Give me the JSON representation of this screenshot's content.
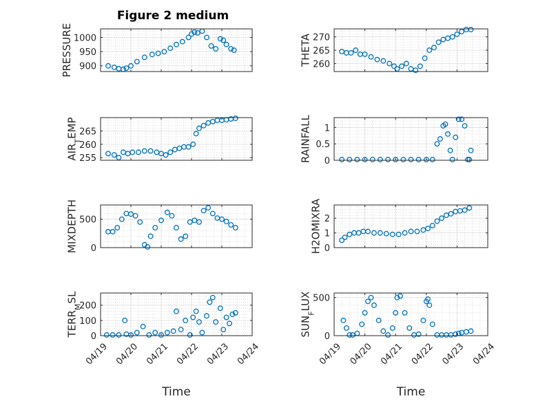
{
  "figure": {
    "title": "Figure 2 medium"
  },
  "chart_data": [
    {
      "type": "scatter",
      "title": "Figure 2 medium",
      "ylabel": "PRESSURE",
      "xlabel": "",
      "ylim": [
        880,
        1030
      ],
      "yticks": [
        900,
        950,
        1000
      ],
      "xlim": [
        "04/19",
        "04/24"
      ],
      "xticks": [
        "04/19",
        "04/20",
        "04/21",
        "04/22",
        "04/23",
        "04/24"
      ],
      "show_x_ticklabels": false,
      "grid": true,
      "marker": "circle",
      "color": "#0072BD",
      "series": [
        {
          "x_days": [
            0.25,
            0.45,
            0.6,
            0.75,
            0.85,
            1.0,
            1.2,
            1.45,
            1.7,
            1.9,
            2.1,
            2.3,
            2.5,
            2.7,
            2.9,
            3.0,
            3.1,
            3.2,
            3.35,
            3.5,
            3.65,
            3.8,
            3.95,
            4.05,
            4.15,
            4.3,
            4.4
          ],
          "y": [
            900,
            895,
            890,
            888,
            892,
            900,
            915,
            930,
            940,
            944,
            950,
            962,
            975,
            985,
            1000,
            1012,
            1018,
            1016,
            1022,
            1000,
            970,
            960,
            995,
            990,
            975,
            960,
            955
          ]
        }
      ]
    },
    {
      "type": "scatter",
      "ylabel": "THETA",
      "xlabel": "",
      "ylim": [
        257,
        273
      ],
      "yticks": [
        260,
        265,
        270
      ],
      "xlim": [
        "04/19",
        "04/24"
      ],
      "xticks": [
        "04/19",
        "04/20",
        "04/21",
        "04/22",
        "04/23",
        "04/24"
      ],
      "show_x_ticklabels": false,
      "grid": true,
      "marker": "circle",
      "color": "#0072BD",
      "series": [
        {
          "x_days": [
            0.25,
            0.4,
            0.55,
            0.7,
            0.85,
            1.0,
            1.2,
            1.4,
            1.6,
            1.8,
            1.95,
            2.05,
            2.2,
            2.35,
            2.5,
            2.65,
            2.8,
            2.95,
            3.1,
            3.25,
            3.4,
            3.55,
            3.7,
            3.85,
            4.0,
            4.15,
            4.3,
            4.45
          ],
          "y": [
            264.5,
            264,
            264,
            265,
            263.5,
            263.5,
            262.5,
            261.5,
            261,
            260,
            259,
            258,
            259,
            260,
            258,
            257.5,
            259,
            262,
            265,
            266,
            268,
            269,
            269.5,
            270,
            271,
            272,
            273,
            274
          ]
        }
      ]
    },
    {
      "type": "scatter",
      "ylabel": "AIR_TEMP",
      "xlabel": "",
      "ylim": [
        254,
        270
      ],
      "yticks": [
        255,
        260,
        265
      ],
      "xlim": [
        "04/19",
        "04/24"
      ],
      "xticks": [
        "04/19",
        "04/20",
        "04/21",
        "04/22",
        "04/23",
        "04/24"
      ],
      "show_x_ticklabels": false,
      "grid": true,
      "marker": "circle",
      "color": "#0072BD",
      "series": [
        {
          "x_days": [
            0.25,
            0.45,
            0.6,
            0.75,
            0.9,
            1.05,
            1.25,
            1.45,
            1.65,
            1.85,
            2.0,
            2.15,
            2.3,
            2.45,
            2.6,
            2.75,
            2.9,
            3.05,
            3.15,
            3.25,
            3.4,
            3.55,
            3.7,
            3.85,
            4.0,
            4.15,
            4.3,
            4.45
          ],
          "y": [
            256.5,
            256,
            255,
            257,
            256.5,
            257,
            257,
            257.5,
            257.5,
            257,
            256.5,
            256,
            257,
            258,
            258.5,
            259,
            259,
            260,
            264,
            266,
            267,
            268,
            268.5,
            269,
            269,
            269.2,
            269.5,
            270
          ]
        }
      ]
    },
    {
      "type": "scatter",
      "ylabel": "RAINFALL",
      "xlabel": "",
      "ylim": [
        0,
        1.3
      ],
      "yticks": [
        0,
        0.5,
        1
      ],
      "xlim": [
        "04/19",
        "04/24"
      ],
      "xticks": [
        "04/19",
        "04/20",
        "04/21",
        "04/22",
        "04/23",
        "04/24"
      ],
      "show_x_ticklabels": false,
      "grid": true,
      "marker": "circle",
      "color": "#0072BD",
      "series": [
        {
          "x_days": [
            0.25,
            0.5,
            0.75,
            1.0,
            1.25,
            1.5,
            1.75,
            2.0,
            2.25,
            2.5,
            2.75,
            3.0,
            3.2,
            3.35,
            3.45,
            3.55,
            3.62,
            3.7,
            3.78,
            3.85,
            3.95,
            4.05,
            4.15,
            4.25,
            4.35,
            4.4,
            4.45
          ],
          "y": [
            0,
            0,
            0,
            0,
            0,
            0,
            0,
            0,
            0,
            0,
            0,
            0,
            0,
            0.5,
            0.65,
            1.05,
            1.1,
            0.8,
            0.3,
            0,
            0.7,
            1.25,
            1.25,
            1.05,
            0,
            0,
            0.3
          ]
        }
      ]
    },
    {
      "type": "scatter",
      "ylabel": "MIXDEPTH",
      "xlabel": "",
      "ylim": [
        0,
        750
      ],
      "yticks": [
        0,
        500
      ],
      "xlim": [
        "04/19",
        "04/24"
      ],
      "xticks": [
        "04/19",
        "04/20",
        "04/21",
        "04/22",
        "04/23",
        "04/24"
      ],
      "show_x_ticklabels": false,
      "grid": true,
      "marker": "circle",
      "color": "#0072BD",
      "series": [
        {
          "x_days": [
            0.25,
            0.4,
            0.55,
            0.7,
            0.85,
            1.0,
            1.15,
            1.3,
            1.45,
            1.55,
            1.65,
            1.8,
            2.0,
            2.2,
            2.35,
            2.5,
            2.65,
            2.8,
            2.95,
            3.1,
            3.25,
            3.4,
            3.55,
            3.7,
            3.85,
            4.0,
            4.15,
            4.3,
            4.45
          ],
          "y": [
            280,
            280,
            350,
            500,
            600,
            590,
            560,
            450,
            50,
            0,
            200,
            350,
            480,
            620,
            560,
            350,
            150,
            200,
            450,
            480,
            450,
            650,
            700,
            600,
            520,
            500,
            460,
            400,
            350
          ]
        }
      ]
    },
    {
      "type": "scatter",
      "ylabel": "H2OMIXRA",
      "xlabel": "",
      "ylim": [
        0,
        2.9
      ],
      "yticks": [
        0,
        1,
        2
      ],
      "xlim": [
        "04/19",
        "04/24"
      ],
      "xticks": [
        "04/19",
        "04/20",
        "04/21",
        "04/22",
        "04/23",
        "04/24"
      ],
      "show_x_ticklabels": false,
      "grid": true,
      "marker": "circle",
      "color": "#0072BD",
      "series": [
        {
          "x_days": [
            0.25,
            0.35,
            0.5,
            0.65,
            0.8,
            0.95,
            1.1,
            1.3,
            1.5,
            1.7,
            1.9,
            2.1,
            2.3,
            2.5,
            2.7,
            2.9,
            3.05,
            3.2,
            3.35,
            3.5,
            3.65,
            3.8,
            3.95,
            4.1,
            4.25,
            4.4
          ],
          "y": [
            0.5,
            0.7,
            0.9,
            1.0,
            1.0,
            1.1,
            1.1,
            1.0,
            1.0,
            0.95,
            0.9,
            0.9,
            1.0,
            1.1,
            1.1,
            1.2,
            1.3,
            1.5,
            1.8,
            2.0,
            2.2,
            2.3,
            2.45,
            2.5,
            2.55,
            2.7
          ]
        }
      ]
    },
    {
      "type": "scatter",
      "ylabel": "TERR_MSL",
      "xlabel": "Time",
      "ylim": [
        0,
        280
      ],
      "yticks": [
        0,
        100,
        200
      ],
      "xlim": [
        "04/19",
        "04/24"
      ],
      "xticks": [
        "04/19",
        "04/20",
        "04/21",
        "04/22",
        "04/23",
        "04/24"
      ],
      "show_x_ticklabels": true,
      "grid": true,
      "marker": "circle",
      "color": "#0072BD",
      "series": [
        {
          "x_days": [
            0.2,
            0.4,
            0.6,
            0.8,
            0.85,
            1.0,
            1.2,
            1.4,
            1.6,
            1.8,
            2.0,
            2.2,
            2.4,
            2.5,
            2.65,
            2.8,
            2.95,
            3.05,
            3.15,
            3.25,
            3.35,
            3.5,
            3.6,
            3.7,
            3.8,
            3.95,
            4.05,
            4.15,
            4.25,
            4.35,
            4.45
          ],
          "y": [
            0,
            0,
            0,
            100,
            10,
            0,
            20,
            60,
            0,
            20,
            0,
            20,
            30,
            160,
            40,
            100,
            0,
            120,
            160,
            90,
            20,
            130,
            220,
            250,
            90,
            180,
            40,
            120,
            80,
            140,
            150
          ]
        }
      ]
    },
    {
      "type": "scatter",
      "ylabel": "SUN_FLUX",
      "xlabel": "Time",
      "ylim": [
        0,
        560
      ],
      "yticks": [
        0,
        500
      ],
      "xlim": [
        "04/19",
        "04/24"
      ],
      "xticks": [
        "04/19",
        "04/20",
        "04/21",
        "04/22",
        "04/23",
        "04/24"
      ],
      "show_x_ticklabels": true,
      "grid": true,
      "marker": "circle",
      "color": "#0072BD",
      "series": [
        {
          "x_days": [
            0.3,
            0.4,
            0.5,
            0.6,
            0.75,
            0.9,
            1.0,
            1.1,
            1.2,
            1.3,
            1.45,
            1.6,
            1.75,
            1.9,
            2.0,
            2.05,
            2.15,
            2.3,
            2.45,
            2.6,
            2.75,
            2.9,
            3.0,
            3.05,
            3.1,
            3.2,
            3.35,
            3.5,
            3.65,
            3.8,
            3.95,
            4.05,
            4.15,
            4.3,
            4.45
          ],
          "y": [
            200,
            100,
            0,
            0,
            30,
            150,
            300,
            450,
            500,
            400,
            200,
            60,
            0,
            100,
            300,
            500,
            520,
            300,
            100,
            0,
            20,
            200,
            450,
            480,
            400,
            150,
            0,
            0,
            5,
            10,
            20,
            30,
            40,
            50,
            60
          ]
        }
      ]
    }
  ]
}
